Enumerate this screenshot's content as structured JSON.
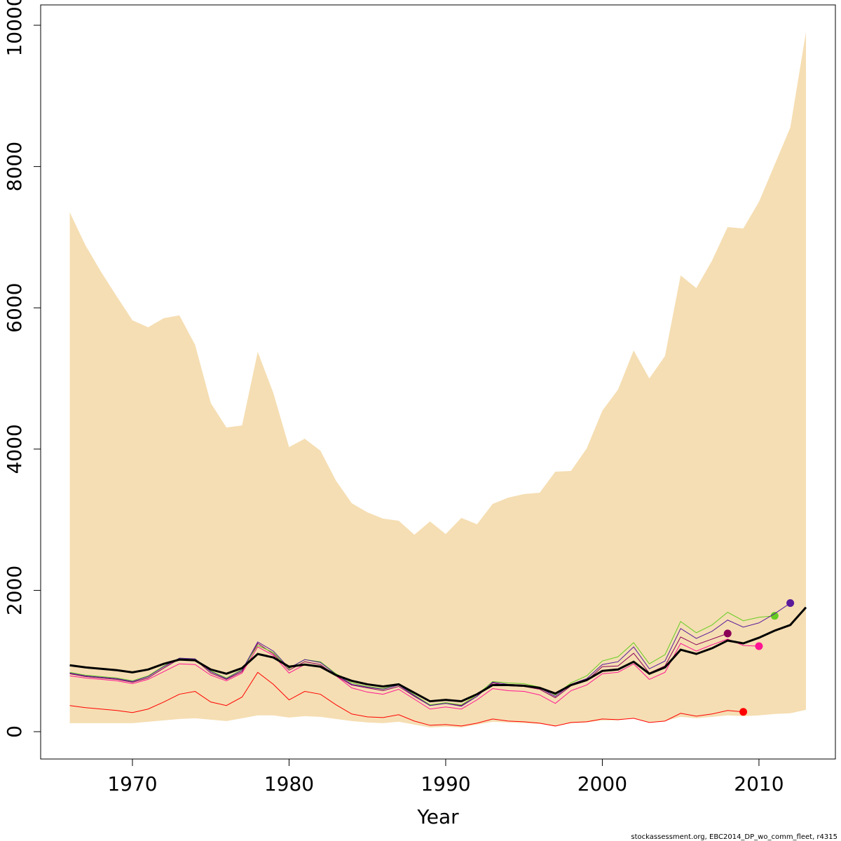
{
  "chart_data": {
    "type": "line",
    "xlabel": "Year",
    "footer": "stockassessment.org, EBC2014_DP_wo_comm_fleet, r4315",
    "x": [
      1966,
      1967,
      1968,
      1969,
      1970,
      1971,
      1972,
      1973,
      1974,
      1975,
      1976,
      1977,
      1978,
      1979,
      1980,
      1981,
      1982,
      1983,
      1984,
      1985,
      1986,
      1987,
      1988,
      1989,
      1990,
      1991,
      1992,
      1993,
      1994,
      1995,
      1996,
      1997,
      1998,
      1999,
      2000,
      2001,
      2002,
      2003,
      2004,
      2005,
      2006,
      2007,
      2008,
      2009,
      2010,
      2011,
      2012,
      2013
    ],
    "band": {
      "color": "#f5deb3",
      "upper": [
        7351,
        6885,
        6508,
        6161,
        5823,
        5724,
        5853,
        5893,
        5476,
        4653,
        4306,
        4335,
        5377,
        4792,
        4028,
        4147,
        3978,
        3552,
        3234,
        3105,
        3016,
        2986,
        2788,
        2976,
        2798,
        3026,
        2937,
        3224,
        3313,
        3363,
        3383,
        3681,
        3690,
        4008,
        4544,
        4841,
        5397,
        5000,
        5317,
        6458,
        6280,
        6667,
        7143,
        7123,
        7500,
        8026,
        8552,
        9901
      ],
      "lower": [
        120,
        120,
        120,
        120,
        120,
        140,
        160,
        180,
        190,
        170,
        150,
        190,
        230,
        230,
        200,
        220,
        210,
        180,
        150,
        130,
        120,
        140,
        100,
        60,
        70,
        60,
        100,
        140,
        130,
        120,
        110,
        80,
        120,
        130,
        160,
        160,
        190,
        130,
        150,
        210,
        190,
        210,
        230,
        220,
        230,
        250,
        260,
        310
      ]
    },
    "series": [
      {
        "color": "#ff0000",
        "width": 1,
        "endpoint": true,
        "values": [
          370,
          340,
          320,
          300,
          270,
          320,
          420,
          530,
          570,
          420,
          370,
          490,
          840,
          670,
          450,
          570,
          530,
          380,
          250,
          210,
          200,
          240,
          150,
          90,
          100,
          80,
          120,
          180,
          150,
          140,
          120,
          80,
          130,
          140,
          180,
          170,
          190,
          130,
          150,
          260,
          220,
          250,
          300,
          280,
          null,
          null,
          null,
          null
        ]
      },
      {
        "color": "#ff1493",
        "width": 1,
        "endpoint": true,
        "values": [
          790,
          760,
          740,
          720,
          680,
          740,
          850,
          960,
          950,
          800,
          720,
          830,
          1200,
          1080,
          830,
          950,
          920,
          790,
          620,
          560,
          530,
          600,
          460,
          320,
          350,
          320,
          450,
          610,
          580,
          570,
          520,
          400,
          580,
          660,
          820,
          840,
          960,
          740,
          840,
          1250,
          1140,
          1230,
          1310,
          1220,
          1210,
          null,
          null,
          null
        ]
      },
      {
        "color": "#8b0057",
        "width": 1,
        "endpoint": true,
        "values": [
          820,
          780,
          760,
          740,
          700,
          760,
          900,
          1030,
          1020,
          830,
          740,
          850,
          1250,
          1100,
          870,
          990,
          950,
          790,
          660,
          620,
          580,
          640,
          500,
          370,
          400,
          370,
          500,
          690,
          650,
          640,
          600,
          480,
          650,
          720,
          920,
          930,
          1110,
          830,
          930,
          1340,
          1230,
          1310,
          1390,
          null,
          null,
          null,
          null,
          null
        ]
      },
      {
        "color": "#66cc22",
        "width": 1,
        "endpoint": true,
        "values": [
          840,
          800,
          780,
          760,
          720,
          790,
          930,
          1040,
          1030,
          860,
          760,
          880,
          1220,
          1120,
          890,
          1020,
          990,
          820,
          690,
          640,
          610,
          670,
          520,
          380,
          410,
          380,
          520,
          710,
          690,
          680,
          630,
          520,
          690,
          790,
          1000,
          1060,
          1260,
          960,
          1090,
          1560,
          1400,
          1510,
          1690,
          1570,
          1620,
          1640,
          null,
          null
        ]
      },
      {
        "color": "#5a1a9a",
        "width": 1,
        "endpoint": true,
        "values": [
          830,
          790,
          770,
          750,
          710,
          780,
          920,
          1040,
          1030,
          850,
          750,
          870,
          1270,
          1140,
          900,
          1020,
          980,
          810,
          670,
          630,
          600,
          660,
          510,
          370,
          400,
          360,
          500,
          700,
          670,
          660,
          620,
          500,
          670,
          750,
          950,
          990,
          1200,
          890,
          1000,
          1460,
          1320,
          1420,
          1580,
          1480,
          1540,
          1670,
          1820,
          null
        ]
      },
      {
        "color": "#000000",
        "width": 3,
        "endpoint": false,
        "values": [
          940,
          910,
          890,
          870,
          840,
          880,
          960,
          1020,
          1010,
          880,
          820,
          900,
          1100,
          1050,
          920,
          950,
          920,
          800,
          720,
          670,
          640,
          670,
          550,
          430,
          450,
          430,
          530,
          660,
          660,
          650,
          620,
          540,
          660,
          730,
          860,
          880,
          990,
          820,
          910,
          1160,
          1100,
          1180,
          1290,
          1250,
          1330,
          1430,
          1510,
          1760
        ]
      }
    ],
    "xlim": [
      1964.14,
      2014.88
    ],
    "ylim": [
      -387,
      10288
    ],
    "xticks": [
      1970,
      1980,
      1990,
      2000,
      2010
    ],
    "yticks": [
      0,
      2000,
      4000,
      6000,
      8000,
      10000
    ]
  }
}
